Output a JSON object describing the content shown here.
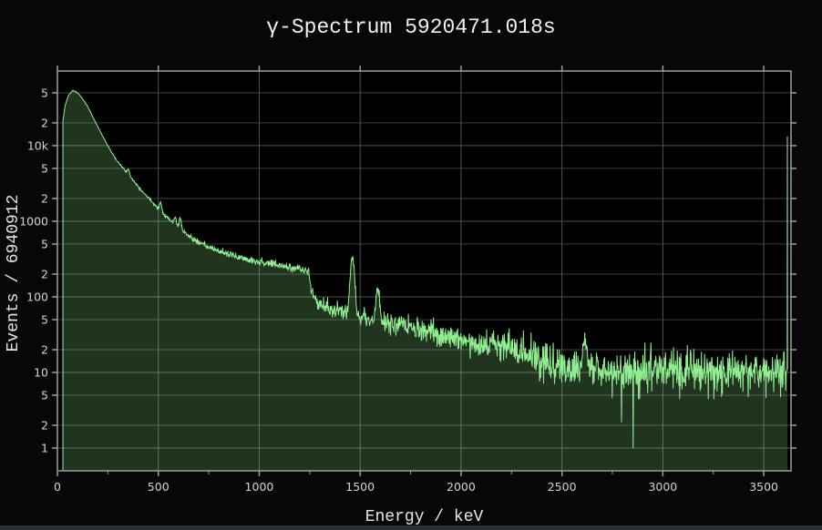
{
  "title": "γ-Spectrum 5920471.018s",
  "x_axis": {
    "label": "Energy / keV",
    "min": 0,
    "max": 3635,
    "minor_tick_step_kev": 250,
    "ticks": [
      {
        "v": 0,
        "label": "0"
      },
      {
        "v": 500,
        "label": "500"
      },
      {
        "v": 1000,
        "label": "1000"
      },
      {
        "v": 1500,
        "label": "1500"
      },
      {
        "v": 2000,
        "label": "2000"
      },
      {
        "v": 2500,
        "label": "2500"
      },
      {
        "v": 3000,
        "label": "3000"
      },
      {
        "v": 3500,
        "label": "3500"
      }
    ]
  },
  "y_axis": {
    "label": "Events / 6940912",
    "scale": "log",
    "min": 0.5,
    "max": 97000,
    "ticks": [
      {
        "v": 1,
        "label": "1",
        "major": true
      },
      {
        "v": 2,
        "label": "2",
        "major": false
      },
      {
        "v": 5,
        "label": "5",
        "major": false
      },
      {
        "v": 10,
        "label": "10",
        "major": true
      },
      {
        "v": 20,
        "label": "2",
        "major": false
      },
      {
        "v": 50,
        "label": "5",
        "major": false
      },
      {
        "v": 100,
        "label": "100",
        "major": true
      },
      {
        "v": 200,
        "label": "2",
        "major": false
      },
      {
        "v": 500,
        "label": "5",
        "major": false
      },
      {
        "v": 1000,
        "label": "1000",
        "major": true
      },
      {
        "v": 2000,
        "label": "2",
        "major": false
      },
      {
        "v": 5000,
        "label": "5",
        "major": false
      },
      {
        "v": 10000,
        "label": "10k",
        "major": true
      },
      {
        "v": 20000,
        "label": "2",
        "major": false
      },
      {
        "v": 50000,
        "label": "5",
        "major": false
      }
    ]
  },
  "colors": {
    "page_bg": "#070707",
    "plot_bg": "#000000",
    "line": "#90ee90",
    "fill": "rgba(144,238,144,0.22)",
    "grid_major": "#525252",
    "grid_minor": "#3f3f3f",
    "frame": "#9e9e9e",
    "tick_mark": "#9e9e9e",
    "tick_label": "#d4d4d4",
    "title_text": "#f2f2f2",
    "axis_label_text": "#e6e6e6",
    "window_edge": "#2b2e33"
  },
  "chart_data": {
    "type": "area",
    "title": "γ-Spectrum 5920471.018s",
    "xlabel": "Energy / keV",
    "ylabel": "Events / 6940912",
    "x_range": [
      0,
      3635
    ],
    "y_range_log": [
      0.5,
      97000
    ],
    "grid": true,
    "legend": false,
    "spectrum": {
      "start_kev": 27,
      "end_kev": 3612,
      "bin_kev": 2,
      "envelope": [
        [
          27,
          21000
        ],
        [
          38,
          34000
        ],
        [
          55,
          46000
        ],
        [
          75,
          53500
        ],
        [
          90,
          52000
        ],
        [
          110,
          47000
        ],
        [
          150,
          33000
        ],
        [
          190,
          20000
        ],
        [
          230,
          12500
        ],
        [
          270,
          8000
        ],
        [
          310,
          5600
        ],
        [
          345,
          4400
        ],
        [
          365,
          3800
        ],
        [
          395,
          3000
        ],
        [
          430,
          2350
        ],
        [
          470,
          1800
        ],
        [
          515,
          1350
        ],
        [
          560,
          1020
        ],
        [
          600,
          830
        ],
        [
          650,
          640
        ],
        [
          700,
          520
        ],
        [
          760,
          440
        ],
        [
          830,
          380
        ],
        [
          900,
          335
        ],
        [
          980,
          300
        ],
        [
          1060,
          272
        ],
        [
          1140,
          248
        ],
        [
          1200,
          235
        ],
        [
          1242,
          222
        ],
        [
          1252,
          160
        ],
        [
          1262,
          110
        ],
        [
          1285,
          85
        ],
        [
          1330,
          72
        ],
        [
          1380,
          65
        ],
        [
          1440,
          60
        ],
        [
          1500,
          56
        ],
        [
          1560,
          50
        ],
        [
          1620,
          47
        ],
        [
          1680,
          43
        ],
        [
          1750,
          38
        ],
        [
          1850,
          33
        ],
        [
          1950,
          29
        ],
        [
          2050,
          26
        ],
        [
          2150,
          23
        ],
        [
          2250,
          20.5
        ],
        [
          2330,
          18.5
        ],
        [
          2400,
          14
        ],
        [
          2480,
          12.5
        ],
        [
          2560,
          11.5
        ],
        [
          2650,
          11
        ],
        [
          2800,
          10.5
        ],
        [
          3000,
          10.5
        ],
        [
          3200,
          10.5
        ],
        [
          3400,
          10.5
        ],
        [
          3600,
          11
        ],
        [
          3620,
          11
        ]
      ],
      "peaks": [
        {
          "center_kev": 352,
          "amp": 700,
          "sigma_kev": 5
        },
        {
          "center_kev": 511,
          "amp": 380,
          "sigma_kev": 5
        },
        {
          "center_kev": 583,
          "amp": 240,
          "sigma_kev": 5
        },
        {
          "center_kev": 609,
          "amp": 330,
          "sigma_kev": 5
        },
        {
          "center_kev": 1461,
          "amp": 285,
          "sigma_kev": 9
        },
        {
          "center_kev": 1588,
          "amp": 72,
          "sigma_kev": 8
        },
        {
          "center_kev": 2614,
          "amp": 15,
          "sigma_kev": 10
        }
      ],
      "dropouts": [
        {
          "kev": 2853,
          "value": 1
        },
        {
          "kev": 2794,
          "value": 2.2
        }
      ],
      "overflow_spike": {
        "kev": 3617,
        "value": 13200
      },
      "noise_seed": 7,
      "noise_scale": 1.0,
      "noise_clamp_sigma": 2.8
    }
  }
}
